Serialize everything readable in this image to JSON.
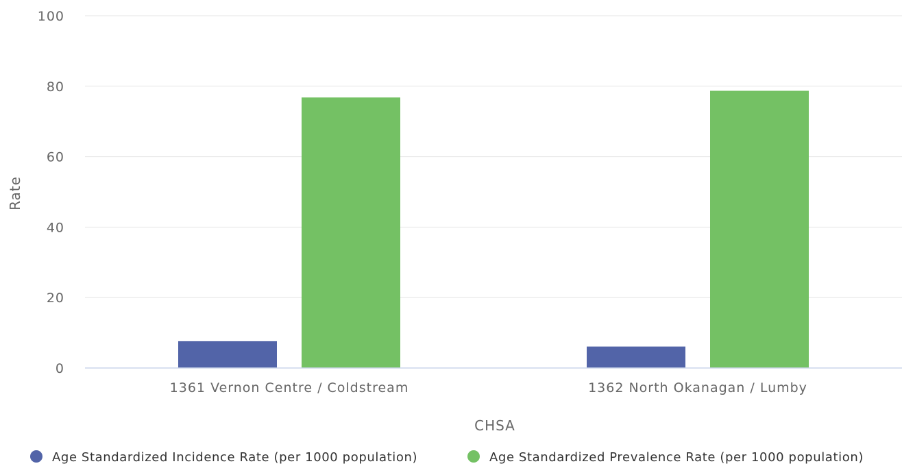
{
  "chart_data": {
    "type": "bar",
    "title": "",
    "xlabel": "CHSA",
    "ylabel": "Rate",
    "ylim": [
      0,
      100
    ],
    "yticks": [
      0,
      20,
      40,
      60,
      80,
      100
    ],
    "grid": true,
    "legend_position": "bottom",
    "categories": [
      "1361 Vernon Centre / Coldstream",
      "1362 North Okanagan / Lumby"
    ],
    "series": [
      {
        "name": "Age Standardized Incidence Rate (per 1000 population)",
        "color": "#5264a8",
        "values": [
          7.6,
          6.1
        ]
      },
      {
        "name": "Age Standardized Prevalence Rate (per 1000 population)",
        "color": "#74c164",
        "values": [
          76.8,
          78.7
        ]
      }
    ]
  }
}
